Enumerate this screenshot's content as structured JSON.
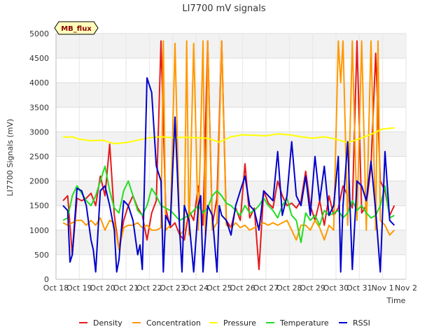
{
  "chart_data": {
    "type": "line",
    "title": "LI7700 mV signals",
    "xlabel": "Time",
    "ylabel": "LI7700 Signals (mV)",
    "ylim": [
      0,
      5000
    ],
    "xlim": [
      0,
      15
    ],
    "yticks": [
      0,
      500,
      1000,
      1500,
      2000,
      2500,
      3000,
      3500,
      4000,
      4500,
      5000
    ],
    "xtick_labels": [
      "Oct 18",
      "Oct 19",
      "Oct 20",
      "Oct 21",
      "Oct 22",
      "Oct 23",
      "Oct 24",
      "Oct 25",
      "Oct 26",
      "Oct 27",
      "Oct 28",
      "Oct 29",
      "Oct 30",
      "Oct 31",
      "Nov 1",
      "Nov 2"
    ],
    "badge": "MB_flux",
    "legend_position": "bottom",
    "series": [
      {
        "name": "Density",
        "color": "#e41a1c",
        "x": [
          0.3,
          0.5,
          0.7,
          0.9,
          1.1,
          1.3,
          1.5,
          1.7,
          1.9,
          2.1,
          2.3,
          2.5,
          2.7,
          2.9,
          3.1,
          3.3,
          3.5,
          3.7,
          3.9,
          4.1,
          4.3,
          4.5,
          4.7,
          4.9,
          5.1,
          5.3,
          5.5,
          5.7,
          5.9,
          6.1,
          6.3,
          6.5,
          6.7,
          6.9,
          7.1,
          7.3,
          7.5,
          7.7,
          7.9,
          8.1,
          8.3,
          8.5,
          8.7,
          8.9,
          9.1,
          9.3,
          9.5,
          9.7,
          9.9,
          10.1,
          10.3,
          10.5,
          10.7,
          10.9,
          11.1,
          11.3,
          11.5,
          11.7,
          11.9,
          12.1,
          12.3,
          12.5,
          12.7,
          12.9,
          13.1,
          13.3,
          13.5,
          13.7,
          13.9,
          14.1,
          14.3,
          14.5
        ],
        "values": [
          1600,
          1700,
          500,
          1650,
          1600,
          1650,
          1750,
          1500,
          2100,
          1700,
          2750,
          1300,
          600,
          1200,
          1500,
          1700,
          1450,
          1300,
          800,
          1350,
          1600,
          4850,
          1450,
          1050,
          1150,
          900,
          800,
          1400,
          1200,
          1900,
          1100,
          4850,
          1100,
          1650,
          4850,
          1200,
          1050,
          1450,
          1200,
          2350,
          1250,
          1450,
          200,
          1800,
          1550,
          1450,
          2000,
          1700,
          1500,
          1550,
          1450,
          1600,
          2200,
          1500,
          1200,
          1600,
          1100,
          1700,
          1300,
          1450,
          1900,
          1700,
          1450,
          4850,
          1350,
          1500,
          2300,
          4600,
          2000,
          1800,
          1300,
          1500
        ]
      },
      {
        "name": "Concentration",
        "color": "#ff9900",
        "x": [
          0.3,
          0.5,
          0.7,
          0.9,
          1.1,
          1.3,
          1.5,
          1.7,
          1.9,
          2.1,
          2.3,
          2.5,
          2.7,
          2.9,
          3.1,
          3.3,
          3.5,
          3.7,
          3.9,
          4.1,
          4.3,
          4.5,
          4.6,
          4.7,
          4.9,
          5.1,
          5.3,
          5.5,
          5.6,
          5.7,
          5.9,
          6.1,
          6.3,
          6.4,
          6.5,
          6.7,
          6.9,
          7.1,
          7.3,
          7.5,
          7.7,
          7.9,
          8.1,
          8.3,
          8.5,
          8.7,
          8.9,
          9.1,
          9.3,
          9.5,
          9.7,
          9.9,
          10.1,
          10.3,
          10.5,
          10.7,
          10.9,
          11.1,
          11.3,
          11.5,
          11.7,
          11.9,
          12.1,
          12.2,
          12.3,
          12.5,
          12.7,
          12.9,
          13.1,
          13.3,
          13.5,
          13.7,
          13.8,
          13.9,
          14.1,
          14.3,
          14.5
        ],
        "values": [
          1150,
          1100,
          1150,
          1200,
          1200,
          1100,
          1200,
          1100,
          1250,
          1000,
          1200,
          1150,
          600,
          1050,
          1100,
          1100,
          1150,
          1050,
          1100,
          1000,
          1000,
          1050,
          4850,
          1000,
          1100,
          4800,
          900,
          1000,
          4850,
          900,
          4800,
          1000,
          4850,
          900,
          4850,
          1000,
          1150,
          4850,
          1100,
          1050,
          1150,
          1050,
          1100,
          1000,
          1050,
          1100,
          1150,
          1100,
          1150,
          1100,
          1150,
          1200,
          1000,
          800,
          1100,
          1100,
          1000,
          1200,
          1050,
          800,
          1100,
          1000,
          4850,
          4000,
          4850,
          1100,
          4850,
          1200,
          4850,
          1000,
          4850,
          1000,
          4850,
          1200,
          1100,
          900,
          1000
        ]
      },
      {
        "name": "Pressure",
        "color": "#ffff00",
        "x": [
          0.3,
          0.7,
          1.0,
          1.5,
          2.0,
          2.5,
          3.0,
          3.5,
          4.0,
          4.5,
          5.0,
          5.5,
          6.0,
          6.5,
          7.0,
          7.5,
          8.0,
          8.5,
          9.0,
          9.5,
          10.0,
          10.5,
          11.0,
          11.5,
          12.0,
          12.5,
          13.0,
          13.5,
          14.0,
          14.5
        ],
        "values": [
          2890,
          2900,
          2850,
          2820,
          2830,
          2760,
          2780,
          2830,
          2880,
          2900,
          2880,
          2890,
          2880,
          2870,
          2790,
          2900,
          2940,
          2930,
          2920,
          2960,
          2940,
          2900,
          2870,
          2900,
          2850,
          2780,
          2860,
          2950,
          3060,
          3080
        ]
      },
      {
        "name": "Temperature",
        "color": "#22dd22",
        "x": [
          0.3,
          0.5,
          0.7,
          0.9,
          1.1,
          1.3,
          1.5,
          1.7,
          1.9,
          2.1,
          2.3,
          2.5,
          2.7,
          2.9,
          3.1,
          3.3,
          3.5,
          3.7,
          3.9,
          4.1,
          4.3,
          4.5,
          4.7,
          4.9,
          5.1,
          5.3,
          5.5,
          5.7,
          5.9,
          6.1,
          6.3,
          6.5,
          6.7,
          6.9,
          7.1,
          7.3,
          7.5,
          7.7,
          7.9,
          8.1,
          8.3,
          8.5,
          8.7,
          8.9,
          9.1,
          9.3,
          9.5,
          9.7,
          9.9,
          10.1,
          10.3,
          10.5,
          10.7,
          10.9,
          11.1,
          11.3,
          11.5,
          11.7,
          11.9,
          12.1,
          12.3,
          12.5,
          12.7,
          12.9,
          13.1,
          13.3,
          13.5,
          13.7,
          13.9,
          14.1,
          14.3,
          14.5
        ],
        "values": [
          1200,
          1250,
          1700,
          1900,
          1750,
          1600,
          1500,
          1700,
          2000,
          2300,
          1800,
          1450,
          1350,
          1800,
          2000,
          1700,
          1400,
          1300,
          1500,
          1850,
          1700,
          1500,
          1450,
          1400,
          1300,
          1200,
          1250,
          1300,
          1400,
          1500,
          1350,
          1450,
          1700,
          1800,
          1700,
          1550,
          1500,
          1400,
          1300,
          1500,
          1350,
          1400,
          1500,
          1650,
          1500,
          1400,
          1250,
          1500,
          1650,
          1300,
          1200,
          750,
          1350,
          1200,
          1300,
          1100,
          1400,
          1300,
          1350,
          1400,
          1250,
          1350,
          1600,
          1400,
          1500,
          1350,
          1250,
          1300,
          1500,
          1900,
          1250,
          1300
        ]
      },
      {
        "name": "RSSI",
        "color": "#0000cc",
        "x": [
          0.3,
          0.5,
          0.6,
          0.7,
          0.9,
          1.1,
          1.3,
          1.5,
          1.6,
          1.7,
          1.9,
          2.1,
          2.3,
          2.5,
          2.6,
          2.7,
          2.9,
          3.1,
          3.3,
          3.5,
          3.6,
          3.7,
          3.9,
          4.1,
          4.3,
          4.5,
          4.6,
          4.7,
          4.9,
          5.1,
          5.3,
          5.4,
          5.5,
          5.7,
          5.9,
          6.1,
          6.2,
          6.3,
          6.5,
          6.7,
          6.9,
          7.0,
          7.1,
          7.3,
          7.5,
          7.7,
          7.9,
          8.1,
          8.3,
          8.5,
          8.7,
          8.9,
          9.1,
          9.3,
          9.5,
          9.7,
          9.9,
          10.1,
          10.3,
          10.5,
          10.7,
          10.9,
          11.1,
          11.3,
          11.5,
          11.7,
          11.9,
          12.1,
          12.2,
          12.3,
          12.5,
          12.7,
          12.9,
          13.1,
          13.3,
          13.5,
          13.7,
          13.9,
          14.1,
          14.3,
          14.5
        ],
        "values": [
          1500,
          1400,
          350,
          500,
          1850,
          1800,
          1500,
          800,
          600,
          150,
          1800,
          1900,
          1500,
          1000,
          150,
          400,
          1600,
          1500,
          1200,
          500,
          700,
          200,
          4100,
          3800,
          2300,
          2000,
          150,
          1300,
          1100,
          3300,
          1000,
          150,
          1500,
          1200,
          150,
          1500,
          1700,
          150,
          1500,
          1300,
          150,
          1500,
          1300,
          1200,
          900,
          1500,
          1800,
          2100,
          1500,
          1400,
          1000,
          1800,
          1700,
          1600,
          2600,
          1300,
          1700,
          2800,
          1700,
          1500,
          2100,
          1300,
          2500,
          1600,
          2300,
          1300,
          1500,
          2500,
          150,
          1500,
          2800,
          200,
          2000,
          1900,
          1600,
          2400,
          1400,
          150,
          2600,
          1200,
          1100
        ]
      }
    ]
  }
}
